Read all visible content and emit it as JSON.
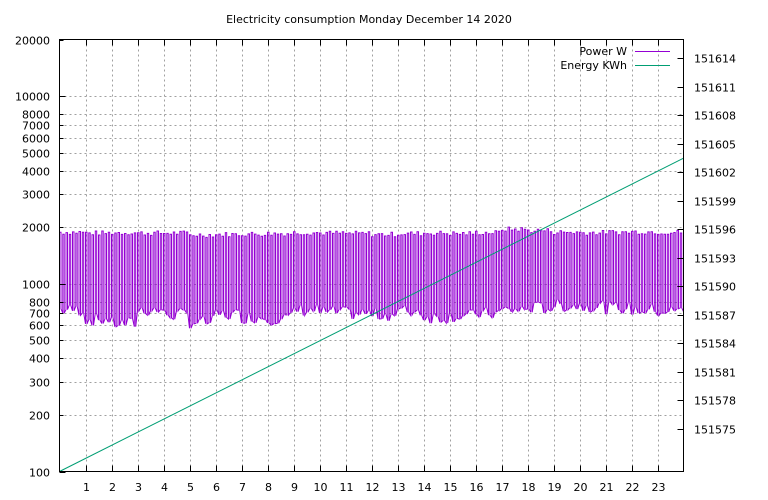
{
  "chart_data": {
    "type": "line",
    "title": "Electricity consumption Monday December 14 2020",
    "xlabel": "",
    "ylabel": "",
    "y2label": "",
    "xlim": [
      0,
      24
    ],
    "ylim": [
      100,
      20000
    ],
    "yscale": "log",
    "y2lim": [
      151570.5,
      151616
    ],
    "x_ticks": [
      1,
      2,
      3,
      4,
      5,
      6,
      7,
      8,
      9,
      10,
      11,
      12,
      13,
      14,
      15,
      16,
      17,
      18,
      19,
      20,
      21,
      22,
      23
    ],
    "y_ticks": [
      100,
      200,
      300,
      400,
      500,
      600,
      700,
      800,
      1000,
      2000,
      3000,
      4000,
      5000,
      6000,
      7000,
      8000,
      10000,
      20000
    ],
    "y2_ticks": [
      151575,
      151578,
      151581,
      151584,
      151587,
      151590,
      151593,
      151596,
      151599,
      151602,
      151605,
      151608,
      151611,
      151614
    ],
    "grid": true,
    "legend_position": "top-right",
    "series": [
      {
        "name": "Power W",
        "axis": "y1",
        "color": "#9400d3",
        "style": "oscillating",
        "high_values": [
          1880,
          1860,
          1870,
          1860,
          1860,
          1820,
          1830,
          1840,
          1850,
          1870,
          1860,
          1850,
          1830,
          1850,
          1860,
          1850,
          1870,
          1950,
          1920,
          1880,
          1870,
          1880,
          1890,
          1880
        ],
        "low_values": [
          720,
          640,
          610,
          720,
          680,
          620,
          680,
          660,
          650,
          720,
          700,
          690,
          680,
          710,
          660,
          670,
          690,
          720,
          740,
          760,
          760,
          740,
          720,
          710
        ]
      },
      {
        "name": "Energy KWh",
        "axis": "y2",
        "color": "#009e73",
        "x": [
          0,
          24
        ],
        "values": [
          151570.5,
          151603.5
        ]
      }
    ]
  }
}
